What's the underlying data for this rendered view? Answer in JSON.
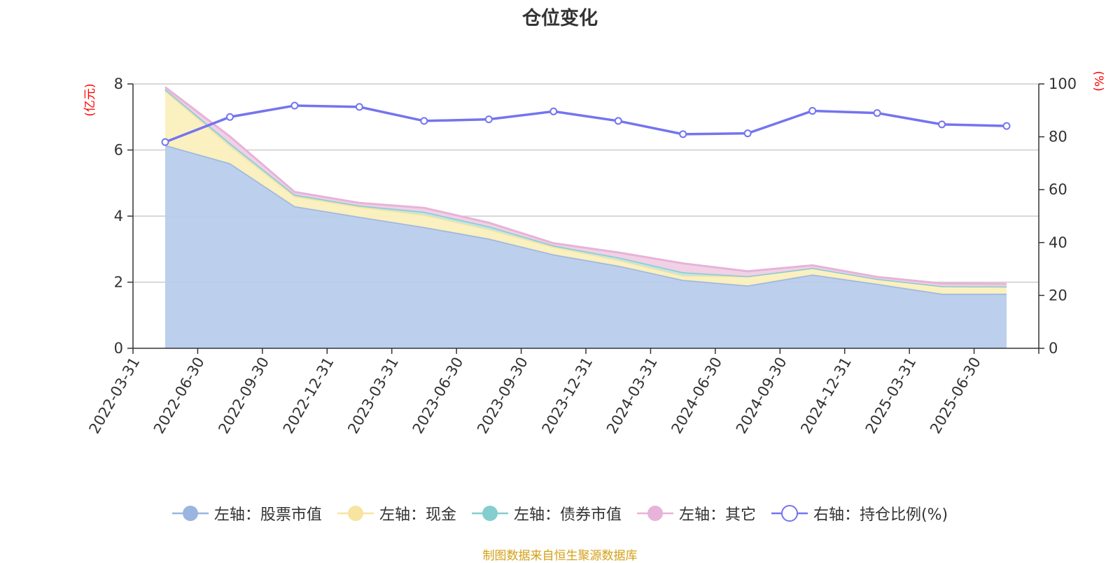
{
  "chart_data": {
    "type": "area",
    "title": "仓位变化",
    "categories": [
      "2022-03-31",
      "2022-06-30",
      "2022-09-30",
      "2022-12-31",
      "2023-03-31",
      "2023-06-30",
      "2023-09-30",
      "2023-12-31",
      "2024-03-31",
      "2024-06-30",
      "2024-09-30",
      "2024-12-31",
      "2025-03-31",
      "2025-06-30"
    ],
    "left_axis": {
      "unit": "(亿元)",
      "ylim": [
        0,
        8
      ],
      "ticks": [
        0,
        2,
        4,
        6,
        8
      ]
    },
    "right_axis": {
      "unit": "(%)",
      "ylim": [
        0,
        100
      ],
      "ticks": [
        0,
        20,
        40,
        60,
        80,
        100
      ]
    },
    "grid": true,
    "stacked": true,
    "series": [
      {
        "name": "左轴：股票市值",
        "axis": "left",
        "color": "#9ab5e0",
        "fill": "#b8cceb",
        "values": [
          6.15,
          5.6,
          4.3,
          3.98,
          3.67,
          3.32,
          2.84,
          2.5,
          2.07,
          1.9,
          2.23,
          1.95,
          1.65,
          1.65
        ]
      },
      {
        "name": "左轴：现金",
        "axis": "left",
        "color": "#f7e4a0",
        "fill": "#fbefbd",
        "values": [
          1.65,
          0.53,
          0.3,
          0.3,
          0.37,
          0.28,
          0.23,
          0.17,
          0.13,
          0.28,
          0.2,
          0.15,
          0.23,
          0.22
        ]
      },
      {
        "name": "左轴：债券市值",
        "axis": "left",
        "color": "#86cdcf",
        "fill": "#bde5e6",
        "values": [
          0.04,
          0.08,
          0.05,
          0.04,
          0.09,
          0.09,
          0.04,
          0.08,
          0.1,
          0.0,
          0.0,
          0.0,
          0.0,
          0.0
        ]
      },
      {
        "name": "左轴：其它",
        "axis": "left",
        "color": "#e7b3d8",
        "fill": "#f1cfe5",
        "values": [
          0.06,
          0.2,
          0.08,
          0.08,
          0.12,
          0.11,
          0.07,
          0.15,
          0.27,
          0.15,
          0.08,
          0.06,
          0.08,
          0.08
        ]
      },
      {
        "name": "右轴：持仓比例(%)",
        "axis": "right",
        "type": "line",
        "color": "#7474f0",
        "values": [
          78,
          87.5,
          91.8,
          91.3,
          86,
          86.6,
          89.6,
          86,
          81,
          81.3,
          89.8,
          89,
          84.7,
          84.1
        ]
      }
    ],
    "legend_position": "bottom-center",
    "source_note": "制图数据来自恒生聚源数据库"
  }
}
